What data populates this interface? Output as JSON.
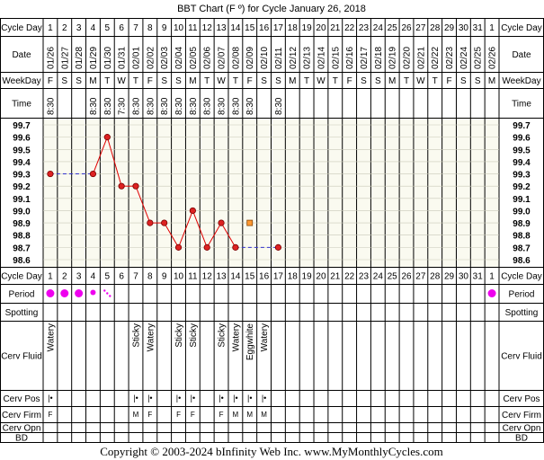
{
  "title": "BBT Chart (F º) for Cycle January 26, 2018",
  "footer": "Copyright © 2003-2024 bInfinity Web Inc.     www.MyMonthlyCycles.com",
  "row_labels": {
    "cycle_day": "Cycle Day",
    "date": "Date",
    "weekday": "WeekDay",
    "time": "Time",
    "period": "Period",
    "spotting": "Spotting",
    "cerv_fluid": "Cerv Fluid",
    "cerv_pos": "Cerv Pos",
    "cerv_firm": "Cerv Firm",
    "cerv_opn": "Cerv Opn",
    "bd": "BD"
  },
  "colors": {
    "chart_bg": "#fafaf0",
    "line": "#e00000",
    "marker": "#dd2222",
    "coverline": "#3333cc",
    "period": "#ee00ee",
    "symbol": "#9944bb",
    "grid": "#000000"
  },
  "columns": [
    {
      "cd": "1",
      "date": "01/26",
      "wd": "F",
      "time": "8:30",
      "fluid": "Watery",
      "pos": "|•",
      "firm": "F",
      "period": "heavy"
    },
    {
      "cd": "2",
      "date": "01/27",
      "wd": "S",
      "time": "",
      "fluid": "",
      "pos": "",
      "firm": "",
      "period": "heavy"
    },
    {
      "cd": "3",
      "date": "01/28",
      "wd": "S",
      "time": "",
      "fluid": "",
      "pos": "",
      "firm": "",
      "period": "heavy"
    },
    {
      "cd": "4",
      "date": "01/29",
      "wd": "M",
      "time": "8:30",
      "fluid": "",
      "pos": "",
      "firm": "",
      "period": "medium"
    },
    {
      "cd": "5",
      "date": "01/30",
      "wd": "T",
      "time": "8:30",
      "fluid": "",
      "pos": "",
      "firm": "",
      "period": "spot"
    },
    {
      "cd": "6",
      "date": "01/31",
      "wd": "W",
      "time": "7:30",
      "fluid": "",
      "pos": "",
      "firm": "",
      "period": ""
    },
    {
      "cd": "7",
      "date": "02/01",
      "wd": "T",
      "time": "8:30",
      "fluid": "Sticky",
      "pos": "|•",
      "firm": "M",
      "period": ""
    },
    {
      "cd": "8",
      "date": "02/02",
      "wd": "F",
      "time": "8:30",
      "fluid": "Watery",
      "pos": "|•",
      "firm": "F",
      "period": ""
    },
    {
      "cd": "9",
      "date": "02/03",
      "wd": "S",
      "time": "8:30",
      "fluid": "",
      "pos": "",
      "firm": "",
      "period": ""
    },
    {
      "cd": "10",
      "date": "02/04",
      "wd": "S",
      "time": "8:30",
      "fluid": "Sticky",
      "pos": "|•",
      "firm": "F",
      "period": ""
    },
    {
      "cd": "11",
      "date": "02/05",
      "wd": "M",
      "time": "8:30",
      "fluid": "Sticky",
      "pos": "|•",
      "firm": "F",
      "period": ""
    },
    {
      "cd": "12",
      "date": "02/06",
      "wd": "T",
      "time": "8:30",
      "fluid": "",
      "pos": "",
      "firm": "",
      "period": ""
    },
    {
      "cd": "13",
      "date": "02/07",
      "wd": "W",
      "time": "8:30",
      "fluid": "Sticky",
      "pos": "|•",
      "firm": "F",
      "period": ""
    },
    {
      "cd": "14",
      "date": "02/08",
      "wd": "T",
      "time": "8:30",
      "fluid": "Watery",
      "pos": "|•",
      "firm": "M",
      "period": ""
    },
    {
      "cd": "15",
      "date": "02/09",
      "wd": "F",
      "time": "8:30",
      "fluid": "Eggwhite",
      "pos": "|•",
      "firm": "M",
      "period": ""
    },
    {
      "cd": "16",
      "date": "02/10",
      "wd": "S",
      "time": "",
      "fluid": "Watery",
      "pos": "|•",
      "firm": "M",
      "period": ""
    },
    {
      "cd": "17",
      "date": "02/11",
      "wd": "S",
      "time": "8:30",
      "fluid": "",
      "pos": "",
      "firm": "",
      "period": ""
    },
    {
      "cd": "18",
      "date": "02/12",
      "wd": "M",
      "time": "",
      "fluid": "",
      "pos": "",
      "firm": "",
      "period": ""
    },
    {
      "cd": "19",
      "date": "02/13",
      "wd": "T",
      "time": "",
      "fluid": "",
      "pos": "",
      "firm": "",
      "period": ""
    },
    {
      "cd": "20",
      "date": "02/14",
      "wd": "W",
      "time": "",
      "fluid": "",
      "pos": "",
      "firm": "",
      "period": ""
    },
    {
      "cd": "21",
      "date": "02/15",
      "wd": "T",
      "time": "",
      "fluid": "",
      "pos": "",
      "firm": "",
      "period": ""
    },
    {
      "cd": "22",
      "date": "02/16",
      "wd": "F",
      "time": "",
      "fluid": "",
      "pos": "",
      "firm": "",
      "period": ""
    },
    {
      "cd": "23",
      "date": "02/17",
      "wd": "S",
      "time": "",
      "fluid": "",
      "pos": "",
      "firm": "",
      "period": ""
    },
    {
      "cd": "24",
      "date": "02/18",
      "wd": "S",
      "time": "",
      "fluid": "",
      "pos": "",
      "firm": "",
      "period": ""
    },
    {
      "cd": "25",
      "date": "02/19",
      "wd": "M",
      "time": "",
      "fluid": "",
      "pos": "",
      "firm": "",
      "period": ""
    },
    {
      "cd": "26",
      "date": "02/20",
      "wd": "T",
      "time": "",
      "fluid": "",
      "pos": "",
      "firm": "",
      "period": ""
    },
    {
      "cd": "27",
      "date": "02/21",
      "wd": "W",
      "time": "",
      "fluid": "",
      "pos": "",
      "firm": "",
      "period": ""
    },
    {
      "cd": "28",
      "date": "02/22",
      "wd": "T",
      "time": "",
      "fluid": "",
      "pos": "",
      "firm": "",
      "period": ""
    },
    {
      "cd": "29",
      "date": "02/23",
      "wd": "F",
      "time": "",
      "fluid": "",
      "pos": "",
      "firm": "",
      "period": ""
    },
    {
      "cd": "30",
      "date": "02/24",
      "wd": "S",
      "time": "",
      "fluid": "",
      "pos": "",
      "firm": "",
      "period": ""
    },
    {
      "cd": "31",
      "date": "02/25",
      "wd": "S",
      "time": "",
      "fluid": "",
      "pos": "",
      "firm": "",
      "period": ""
    },
    {
      "cd": "1",
      "date": "02/26",
      "wd": "M",
      "time": "",
      "fluid": "",
      "pos": "",
      "firm": "",
      "period": "heavy"
    }
  ],
  "chart_data": {
    "type": "line",
    "title": "BBT Chart (F º) for Cycle January 26, 2018",
    "xlabel": "Cycle Day",
    "ylabel": "",
    "ylim": [
      98.6,
      99.7
    ],
    "y_ticks": [
      "99.7",
      "99.6",
      "99.5",
      "99.4",
      "99.3",
      "99.2",
      "99.1",
      "99.0",
      "98.9",
      "98.8",
      "98.7",
      "98.6"
    ],
    "grid": true,
    "series": [
      {
        "points": [
          {
            "day": 1,
            "temp": 99.3
          },
          {
            "day": 4,
            "temp": 99.3
          },
          {
            "day": 5,
            "temp": 99.6
          },
          {
            "day": 6,
            "temp": 99.2
          },
          {
            "day": 7,
            "temp": 99.2
          },
          {
            "day": 8,
            "temp": 98.9
          },
          {
            "day": 9,
            "temp": 98.9
          },
          {
            "day": 10,
            "temp": 98.7
          },
          {
            "day": 11,
            "temp": 99.0
          },
          {
            "day": 12,
            "temp": 98.7
          },
          {
            "day": 13,
            "temp": 98.9
          },
          {
            "day": 14,
            "temp": 98.7
          },
          {
            "day": 17,
            "temp": 98.7
          }
        ],
        "interpolated_gaps": [
          [
            1,
            4
          ],
          [
            14,
            17
          ]
        ]
      }
    ],
    "excluded_points": [
      {
        "day": 15,
        "temp": 98.9
      }
    ]
  }
}
